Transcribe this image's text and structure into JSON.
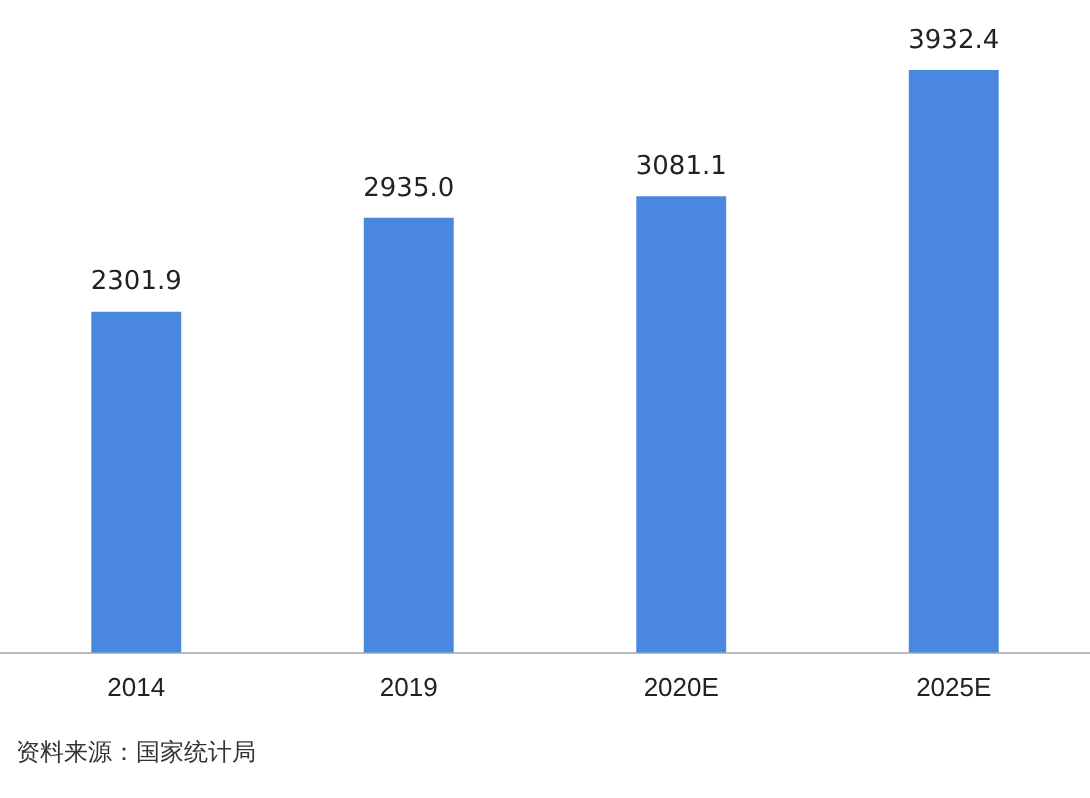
{
  "chart_data": {
    "type": "bar",
    "categories": [
      "2014",
      "2019",
      "2020E",
      "2025E"
    ],
    "values": [
      2301.9,
      2935.0,
      3081.1,
      3932.4
    ],
    "value_labels": [
      "2301.9",
      "2935.0",
      "3081.1",
      "3932.4"
    ],
    "color": "#4a88e0",
    "grid": false,
    "legend": false,
    "annotations": [
      "资料来源：国家统计局"
    ]
  }
}
